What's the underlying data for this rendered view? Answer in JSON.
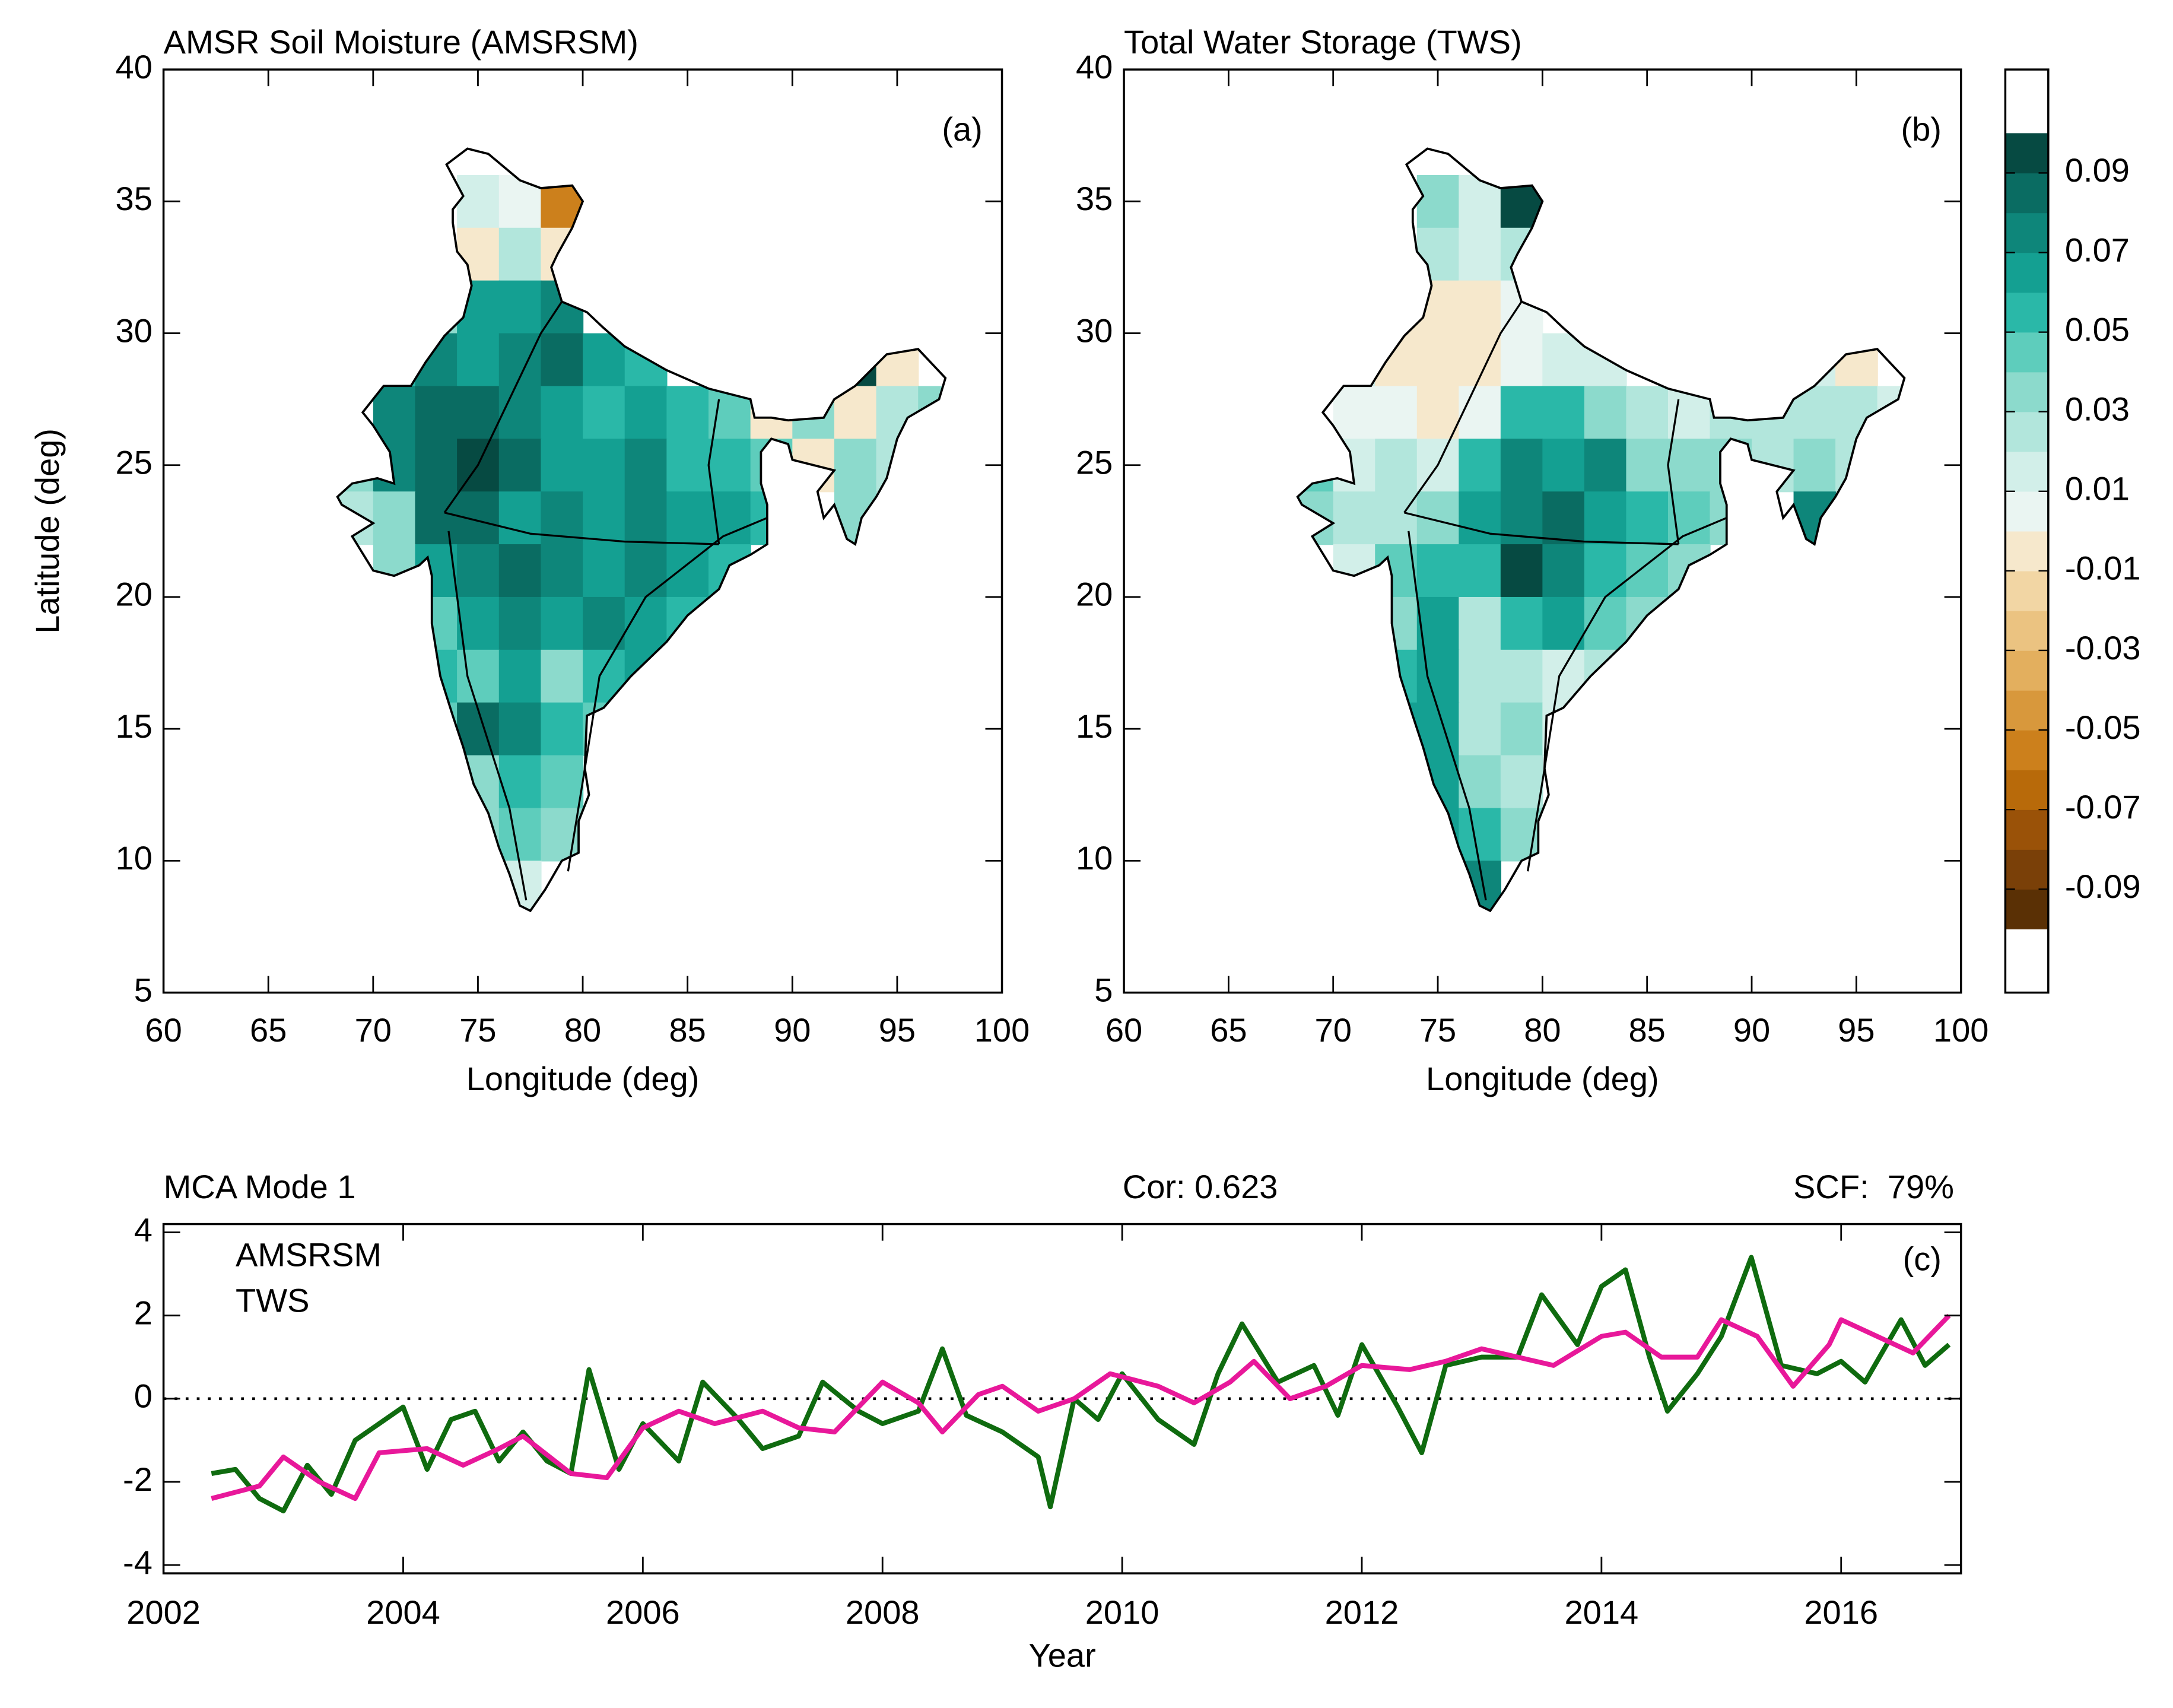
{
  "chart_data": [
    {
      "type": "heatmap",
      "title": "AMSR Soil Moisture (AMSRSM)",
      "label": "(a)",
      "xlabel": "Longitude (deg)",
      "ylabel": "Latitude (deg)",
      "xlim": [
        60,
        100
      ],
      "ylim": [
        5,
        40
      ],
      "xticks": [
        60,
        65,
        70,
        75,
        80,
        85,
        90,
        95,
        100
      ],
      "yticks": [
        5,
        10,
        15,
        20,
        25,
        30,
        35,
        40
      ],
      "lon": [
        75,
        77,
        79,
        75,
        77,
        79,
        73,
        75,
        77,
        79,
        71,
        73,
        75,
        77,
        79,
        81,
        83,
        93,
        95,
        71,
        73,
        75,
        77,
        79,
        81,
        83,
        85,
        87,
        89,
        91,
        93,
        95,
        97,
        69,
        71,
        73,
        75,
        77,
        79,
        81,
        83,
        85,
        87,
        89,
        91,
        93,
        95,
        69,
        71,
        73,
        75,
        77,
        79,
        81,
        83,
        85,
        87,
        89,
        93,
        71,
        73,
        75,
        77,
        79,
        81,
        83,
        85,
        87,
        73,
        75,
        77,
        79,
        81,
        83,
        85,
        73,
        75,
        77,
        79,
        81,
        83,
        73,
        75,
        77,
        79,
        81,
        75,
        77,
        79,
        75,
        77,
        79,
        77
      ],
      "lat": [
        35,
        35,
        35,
        33,
        33,
        33,
        31,
        31,
        31,
        31,
        29,
        29,
        29,
        29,
        29,
        29,
        29,
        29,
        29,
        27,
        27,
        27,
        27,
        27,
        27,
        27,
        27,
        27,
        27,
        27,
        27,
        27,
        27,
        25,
        25,
        25,
        25,
        25,
        25,
        25,
        25,
        25,
        25,
        25,
        25,
        25,
        25,
        23,
        23,
        23,
        23,
        23,
        23,
        23,
        23,
        23,
        23,
        23,
        23,
        21,
        21,
        21,
        21,
        21,
        21,
        21,
        21,
        21,
        19,
        19,
        19,
        19,
        19,
        19,
        19,
        17,
        17,
        17,
        17,
        17,
        17,
        15,
        15,
        15,
        15,
        15,
        13,
        13,
        13,
        11,
        11,
        11,
        9
      ],
      "values": [
        0.01,
        0.0,
        -0.06,
        -0.01,
        0.02,
        -0.01,
        0.03,
        0.06,
        0.06,
        0.07,
        0.05,
        0.07,
        0.06,
        0.07,
        0.08,
        0.06,
        0.05,
        0.09,
        -0.01,
        0.07,
        0.08,
        0.08,
        0.07,
        0.06,
        0.05,
        0.06,
        0.05,
        0.04,
        -0.01,
        0.03,
        -0.01,
        0.02,
        0.03,
        0.03,
        0.07,
        0.08,
        0.09,
        0.08,
        0.06,
        0.06,
        0.07,
        0.05,
        0.05,
        0.04,
        -0.01,
        0.03,
        0.02,
        0.02,
        0.03,
        0.08,
        0.08,
        0.06,
        0.07,
        0.06,
        0.07,
        0.06,
        0.06,
        0.05,
        0.03,
        0.03,
        0.06,
        0.07,
        0.08,
        0.07,
        0.06,
        0.07,
        0.06,
        0.05,
        0.04,
        0.06,
        0.07,
        0.06,
        0.07,
        0.06,
        0.05,
        0.05,
        0.04,
        0.06,
        0.03,
        0.05,
        0.06,
        0.04,
        0.08,
        0.07,
        0.05,
        0.04,
        0.03,
        0.05,
        0.04,
        0.03,
        0.04,
        0.03,
        0.01
      ]
    },
    {
      "type": "heatmap",
      "title": "Total Water Storage (TWS)",
      "label": "(b)",
      "xlabel": "Longitude (deg)",
      "xlim": [
        60,
        100
      ],
      "ylim": [
        5,
        40
      ],
      "xticks": [
        60,
        65,
        70,
        75,
        80,
        85,
        90,
        95,
        100
      ],
      "yticks": [
        5,
        10,
        15,
        20,
        25,
        30,
        35,
        40
      ],
      "lon": [
        75,
        77,
        79,
        75,
        77,
        79,
        73,
        75,
        77,
        79,
        71,
        73,
        75,
        77,
        79,
        81,
        83,
        93,
        95,
        71,
        73,
        75,
        77,
        79,
        81,
        83,
        85,
        87,
        89,
        91,
        93,
        95,
        97,
        69,
        71,
        73,
        75,
        77,
        79,
        81,
        83,
        85,
        87,
        89,
        91,
        93,
        95,
        69,
        71,
        73,
        75,
        77,
        79,
        81,
        83,
        85,
        87,
        89,
        93,
        71,
        73,
        75,
        77,
        79,
        81,
        83,
        85,
        87,
        73,
        75,
        77,
        79,
        81,
        83,
        85,
        73,
        75,
        77,
        79,
        81,
        83,
        73,
        75,
        77,
        79,
        81,
        75,
        77,
        79,
        75,
        77,
        79,
        77
      ],
      "lat": [
        35,
        35,
        35,
        33,
        33,
        33,
        31,
        31,
        31,
        31,
        29,
        29,
        29,
        29,
        29,
        29,
        29,
        29,
        29,
        27,
        27,
        27,
        27,
        27,
        27,
        27,
        27,
        27,
        27,
        27,
        27,
        27,
        27,
        25,
        25,
        25,
        25,
        25,
        25,
        25,
        25,
        25,
        25,
        25,
        25,
        25,
        25,
        23,
        23,
        23,
        23,
        23,
        23,
        23,
        23,
        23,
        23,
        23,
        23,
        21,
        21,
        21,
        21,
        21,
        21,
        21,
        21,
        21,
        19,
        19,
        19,
        19,
        19,
        19,
        19,
        17,
        17,
        17,
        17,
        17,
        17,
        15,
        15,
        15,
        15,
        15,
        13,
        13,
        13,
        11,
        11,
        11,
        9
      ],
      "values": [
        0.03,
        0.01,
        0.09,
        0.02,
        0.01,
        0.02,
        -0.01,
        -0.01,
        -0.01,
        0.0,
        0.01,
        -0.01,
        -0.01,
        -0.01,
        0.0,
        0.01,
        0.01,
        0.01,
        -0.01,
        0.0,
        0.0,
        -0.01,
        0.0,
        0.05,
        0.05,
        0.03,
        0.02,
        0.01,
        0.02,
        0.02,
        0.02,
        0.02,
        0.01,
        0.04,
        0.01,
        0.02,
        0.01,
        0.05,
        0.07,
        0.06,
        0.07,
        0.03,
        0.03,
        0.03,
        0.02,
        0.03,
        0.02,
        0.03,
        0.02,
        0.02,
        0.03,
        0.06,
        0.07,
        0.08,
        0.06,
        0.05,
        0.04,
        0.03,
        0.07,
        0.01,
        0.04,
        0.05,
        0.05,
        0.09,
        0.07,
        0.05,
        0.04,
        0.03,
        0.03,
        0.06,
        0.02,
        0.05,
        0.06,
        0.04,
        0.03,
        0.05,
        0.06,
        0.02,
        0.02,
        0.01,
        0.02,
        0.06,
        0.06,
        0.02,
        0.03,
        0.01,
        0.06,
        0.03,
        0.02,
        0.06,
        0.05,
        0.03,
        0.07
      ]
    },
    {
      "type": "colorbar",
      "ylim": [
        -0.116,
        0.116
      ],
      "range": [
        -0.1,
        0.1
      ],
      "yticks": [
        -0.09,
        -0.07,
        -0.05,
        -0.03,
        -0.01,
        0.01,
        0.03,
        0.05,
        0.07,
        0.09
      ],
      "colors": [
        "#5a3005",
        "#7a4008",
        "#9a5208",
        "#b86a0a",
        "#cc801c",
        "#d8983c",
        "#e3af5e",
        "#ebc381",
        "#f2d6a4",
        "#f6e8cc",
        "#eaf5f2",
        "#d2efe9",
        "#b2e6dc",
        "#8cdacc",
        "#5ecdbc",
        "#2ab8a8",
        "#14a092",
        "#0e867a",
        "#0a6c62",
        "#064a42"
      ]
    },
    {
      "type": "line",
      "title": "MCA Mode 1",
      "annotations": [
        "Cor: 0.623",
        "SCF:  79%"
      ],
      "label": "(c)",
      "xlabel": "Year",
      "xlim": [
        2002,
        2017
      ],
      "ylim": [
        -4.2,
        4.2
      ],
      "xticks": [
        2002,
        2004,
        2006,
        2008,
        2010,
        2012,
        2014,
        2016
      ],
      "yticks": [
        -4,
        -2,
        0,
        2,
        4
      ],
      "hline": 0,
      "series": [
        {
          "name": "AMSRSM",
          "color": "#0f6b0f",
          "x": [
            2002.4,
            2002.6,
            2002.8,
            2003.0,
            2003.2,
            2003.4,
            2003.6,
            2003.8,
            2004.0,
            2004.2,
            2004.4,
            2004.6,
            2004.8,
            2005.0,
            2005.2,
            2005.4,
            2005.55,
            2005.8,
            2006.0,
            2006.3,
            2006.5,
            2006.8,
            2007.0,
            2007.3,
            2007.5,
            2007.8,
            2008.0,
            2008.3,
            2008.5,
            2008.7,
            2009.0,
            2009.3,
            2009.4,
            2009.6,
            2009.8,
            2010.0,
            2010.3,
            2010.6,
            2010.8,
            2011.0,
            2011.3,
            2011.6,
            2011.8,
            2012.0,
            2012.3,
            2012.5,
            2012.7,
            2013.0,
            2013.3,
            2013.5,
            2013.8,
            2014.0,
            2014.2,
            2014.4,
            2014.55,
            2014.8,
            2015.0,
            2015.25,
            2015.5,
            2015.8,
            2016.0,
            2016.2,
            2016.5,
            2016.7,
            2016.9
          ],
          "values": [
            -1.8,
            -1.7,
            -2.4,
            -2.7,
            -1.6,
            -2.3,
            -1.0,
            -0.6,
            -0.2,
            -1.7,
            -0.5,
            -0.3,
            -1.5,
            -0.8,
            -1.5,
            -1.8,
            0.7,
            -1.7,
            -0.6,
            -1.5,
            0.4,
            -0.5,
            -1.2,
            -0.9,
            0.4,
            -0.3,
            -0.6,
            -0.3,
            1.2,
            -0.4,
            -0.8,
            -1.4,
            -2.6,
            0.0,
            -0.5,
            0.6,
            -0.5,
            -1.1,
            0.6,
            1.8,
            0.4,
            0.8,
            -0.4,
            1.3,
            -0.2,
            -1.3,
            0.8,
            1.0,
            1.0,
            2.5,
            1.3,
            2.7,
            3.1,
            1.0,
            -0.3,
            0.6,
            1.5,
            3.4,
            0.8,
            0.6,
            0.9,
            0.4,
            1.9,
            0.8,
            1.3
          ]
        },
        {
          "name": "TWS",
          "color": "#e8189a",
          "x": [
            2002.4,
            2002.8,
            2003.0,
            2003.3,
            2003.6,
            2003.8,
            2004.2,
            2004.5,
            2004.8,
            2005.0,
            2005.4,
            2005.7,
            2006.0,
            2006.3,
            2006.6,
            2007.0,
            2007.3,
            2007.6,
            2008.0,
            2008.3,
            2008.5,
            2008.8,
            2009.0,
            2009.3,
            2009.6,
            2009.9,
            2010.3,
            2010.6,
            2010.9,
            2011.1,
            2011.4,
            2011.7,
            2012.0,
            2012.4,
            2012.7,
            2013.0,
            2013.3,
            2013.6,
            2014.0,
            2014.2,
            2014.5,
            2014.8,
            2015.0,
            2015.3,
            2015.6,
            2015.9,
            2016.0,
            2016.3,
            2016.6,
            2016.9
          ],
          "values": [
            -2.4,
            -2.1,
            -1.4,
            -2.0,
            -2.4,
            -1.3,
            -1.2,
            -1.6,
            -1.2,
            -0.9,
            -1.8,
            -1.9,
            -0.7,
            -0.3,
            -0.6,
            -0.3,
            -0.7,
            -0.8,
            0.4,
            -0.1,
            -0.8,
            0.1,
            0.3,
            -0.3,
            0.0,
            0.6,
            0.3,
            -0.1,
            0.4,
            0.9,
            0.0,
            0.3,
            0.8,
            0.7,
            0.9,
            1.2,
            1.0,
            0.8,
            1.5,
            1.6,
            1.0,
            1.0,
            1.9,
            1.5,
            0.3,
            1.3,
            1.9,
            1.5,
            1.1,
            2.0
          ]
        }
      ]
    }
  ]
}
